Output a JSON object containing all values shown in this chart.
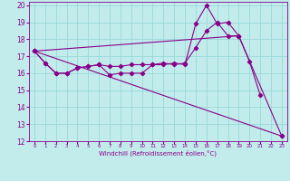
{
  "xlabel": "Windchill (Refroidissement éolien,°C)",
  "xlim": [
    -0.5,
    23.5
  ],
  "ylim": [
    12,
    20.2
  ],
  "xtick_vals": [
    0,
    1,
    2,
    3,
    4,
    5,
    6,
    7,
    8,
    9,
    10,
    11,
    12,
    13,
    14,
    15,
    16,
    17,
    18,
    19,
    20,
    21,
    22,
    23
  ],
  "ytick_vals": [
    12,
    13,
    14,
    15,
    16,
    17,
    18,
    19,
    20
  ],
  "bg_color": "#c2ecec",
  "line_color": "#880088",
  "grid_color": "#99d8d8",
  "series": [
    {
      "x": [
        0,
        1,
        2,
        3,
        4,
        5,
        6,
        7,
        8,
        9,
        10,
        11,
        12,
        13,
        14,
        15,
        16,
        17,
        18,
        19,
        20,
        21
      ],
      "y": [
        17.3,
        16.6,
        16.0,
        16.0,
        16.3,
        16.4,
        16.5,
        15.9,
        16.0,
        16.0,
        16.0,
        16.5,
        16.5,
        16.6,
        16.5,
        18.9,
        20.0,
        18.9,
        19.0,
        18.2,
        16.7,
        14.7
      ]
    },
    {
      "x": [
        0,
        1,
        2,
        3,
        4,
        5,
        6,
        7,
        8,
        9,
        10,
        11,
        12,
        13,
        14,
        15,
        16,
        17,
        18,
        19
      ],
      "y": [
        17.3,
        16.6,
        16.0,
        16.0,
        16.3,
        16.4,
        16.5,
        16.4,
        16.4,
        16.5,
        16.5,
        16.5,
        16.6,
        16.5,
        16.6,
        17.5,
        18.5,
        19.0,
        18.2,
        18.2
      ]
    },
    {
      "x": [
        0,
        23
      ],
      "y": [
        17.3,
        12.3
      ]
    },
    {
      "x": [
        0,
        19,
        23
      ],
      "y": [
        17.3,
        18.2,
        12.3
      ]
    }
  ]
}
